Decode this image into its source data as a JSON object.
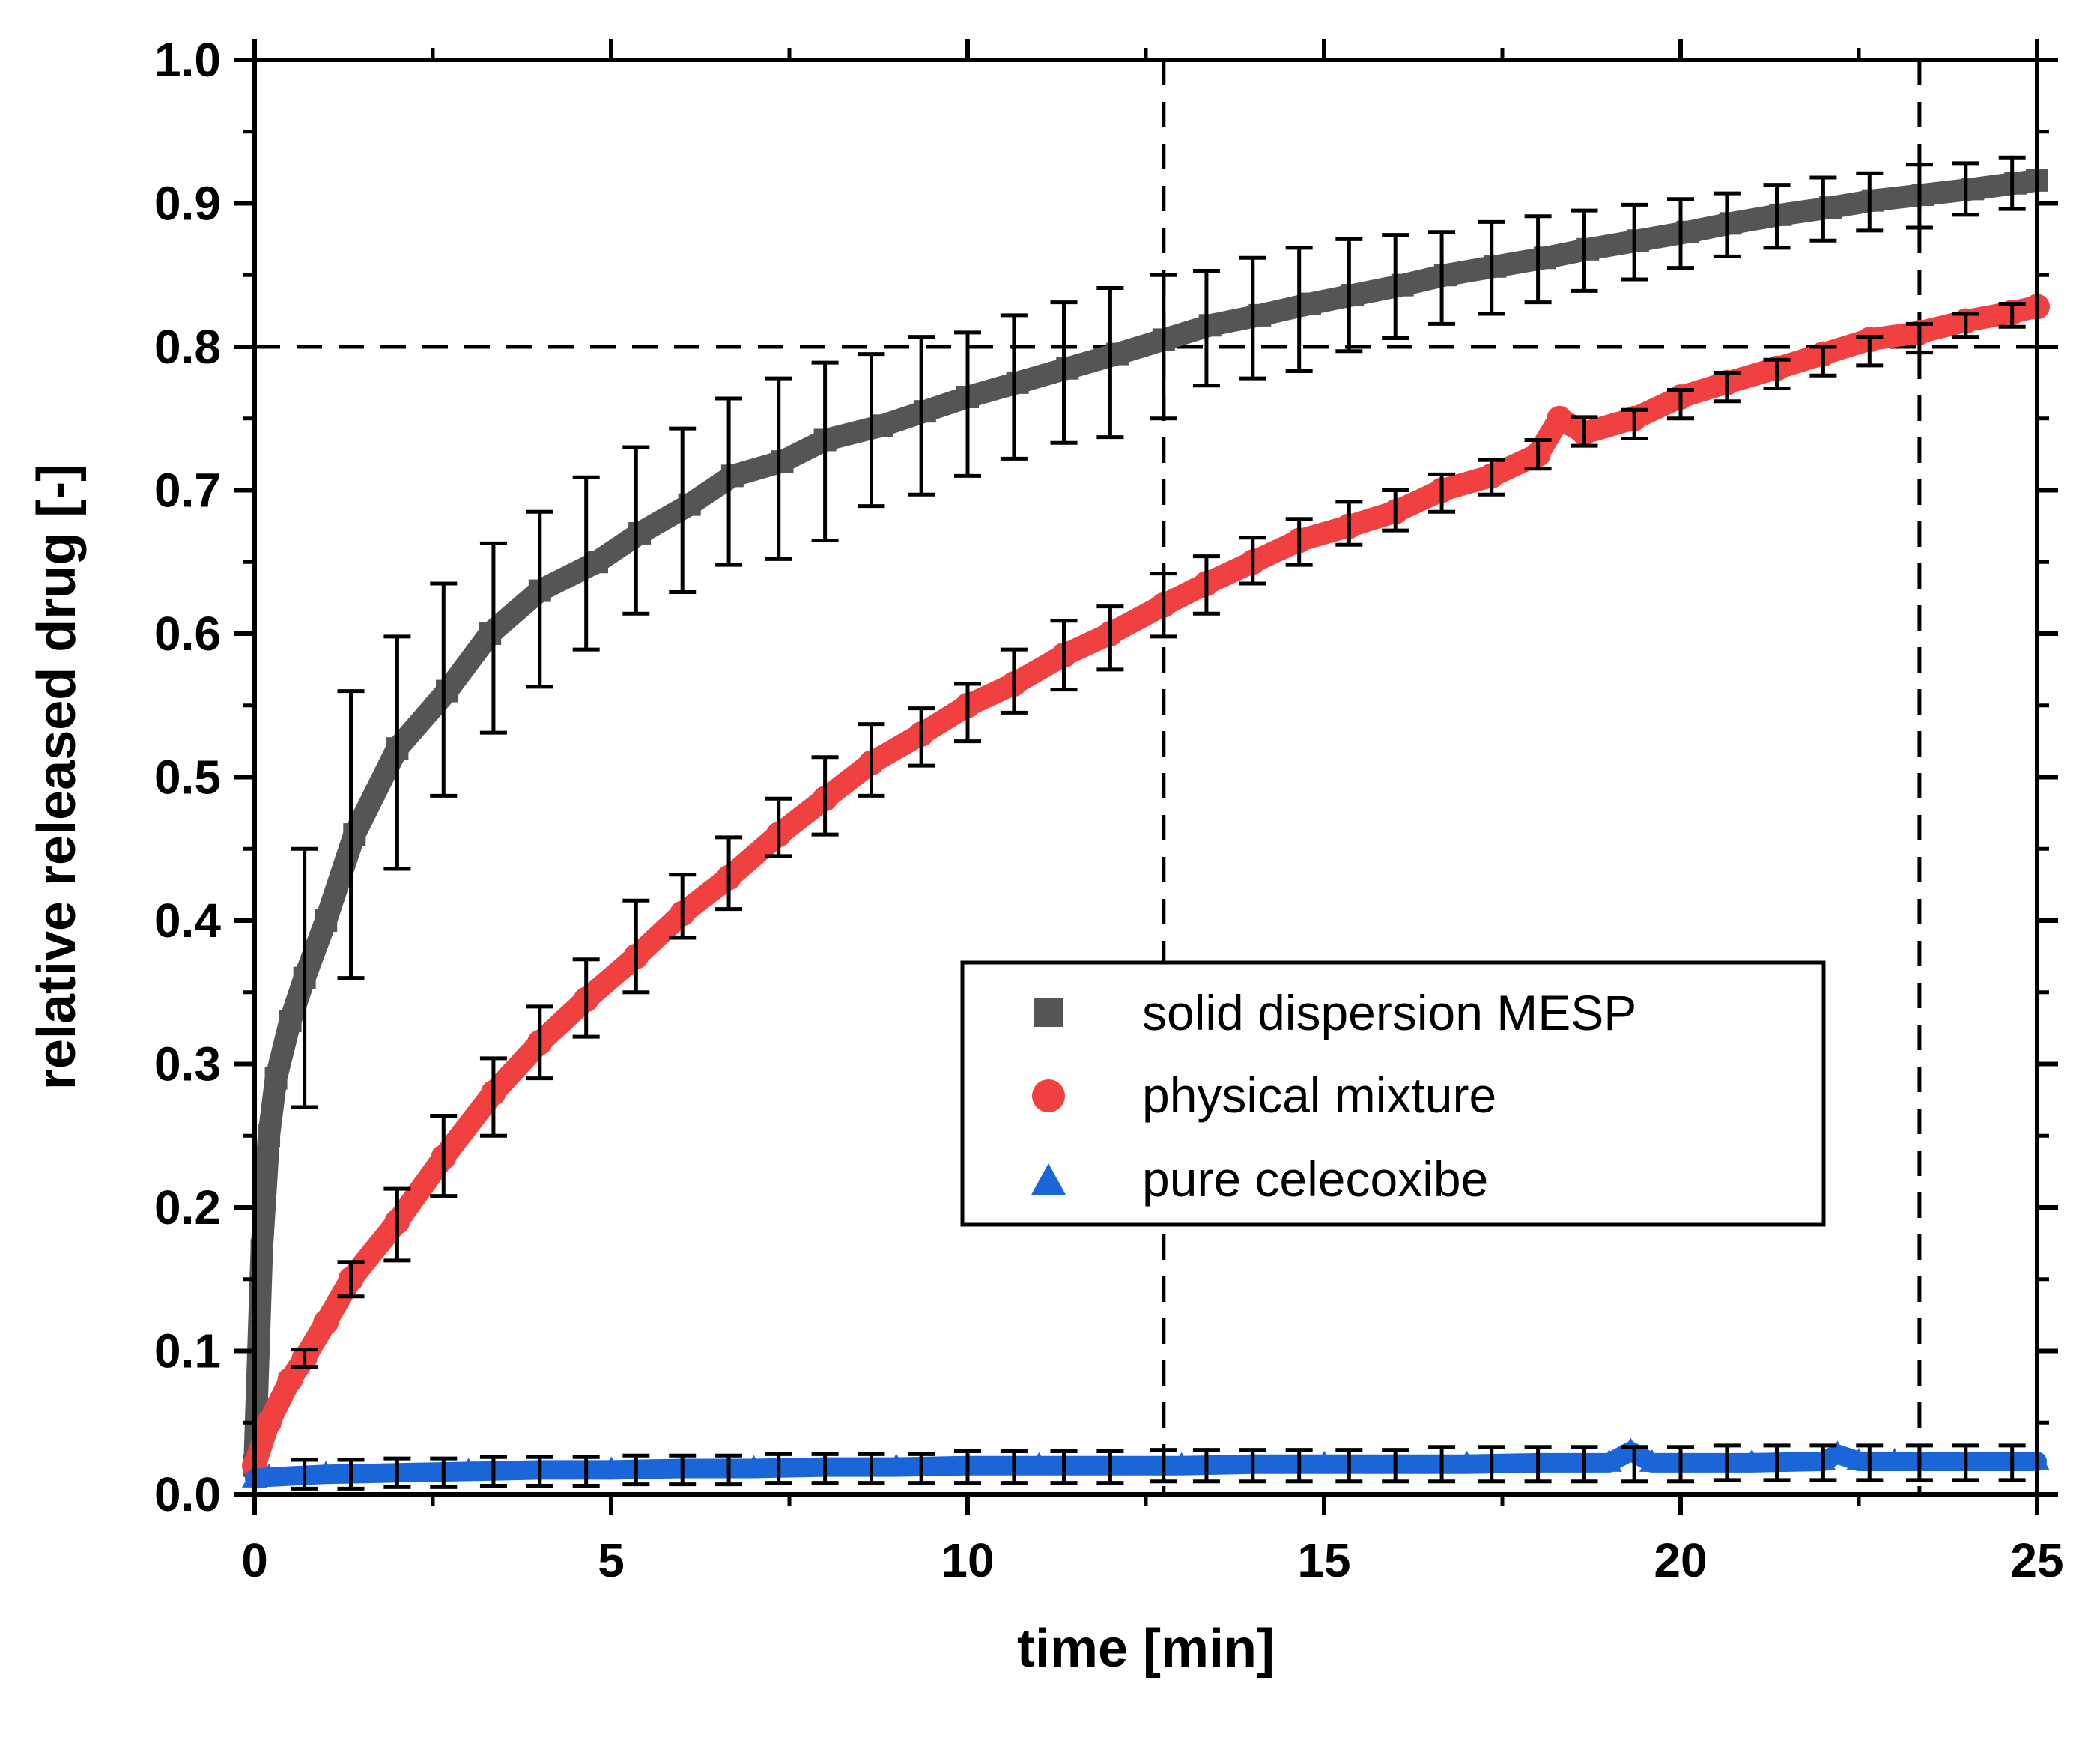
{
  "chart_data": {
    "type": "line",
    "title": "",
    "xlabel": "time [min]",
    "ylabel": "relative released drug [-]",
    "xlim": [
      0,
      25
    ],
    "ylim": [
      0,
      1.0
    ],
    "x_ticks": [
      "0",
      "5",
      "10",
      "15",
      "20",
      "25"
    ],
    "y_ticks": [
      "0.0",
      "0.1",
      "0.2",
      "0.3",
      "0.4",
      "0.5",
      "0.6",
      "0.7",
      "0.8",
      "0.9",
      "1.0"
    ],
    "grid": false,
    "legend_position": "center-right",
    "reference_lines": {
      "horizontal_y": 0.8,
      "vertical_x": [
        12.75,
        23.35
      ]
    },
    "series": [
      {
        "name": "solid dispersion MESP",
        "marker": "square",
        "color": "#555555",
        "x": [
          0,
          0.1,
          0.2,
          0.3,
          0.5,
          0.7,
          1.0,
          1.4,
          2.0,
          2.7,
          3.3,
          4.0,
          4.8,
          5.4,
          6.1,
          6.7,
          7.4,
          8.0,
          8.8,
          9.4,
          10.0,
          10.7,
          11.4,
          12.1,
          12.75,
          13.4,
          14.1,
          14.8,
          15.4,
          16.1,
          16.7,
          17.4,
          18.1,
          18.7,
          19.4,
          20.1,
          20.7,
          21.4,
          22.1,
          22.7,
          23.4,
          24.1,
          24.7,
          25.0
        ],
        "y": [
          0.02,
          0.17,
          0.25,
          0.29,
          0.33,
          0.36,
          0.4,
          0.46,
          0.52,
          0.56,
          0.6,
          0.63,
          0.65,
          0.67,
          0.69,
          0.71,
          0.72,
          0.735,
          0.745,
          0.755,
          0.765,
          0.775,
          0.785,
          0.795,
          0.805,
          0.815,
          0.822,
          0.83,
          0.836,
          0.843,
          0.85,
          0.856,
          0.862,
          0.868,
          0.874,
          0.88,
          0.886,
          0.892,
          0.897,
          0.902,
          0.906,
          0.91,
          0.914,
          0.916
        ],
        "error_x": [
          0.7,
          1.35,
          2.0,
          2.65,
          3.35,
          4.0,
          4.65,
          5.35,
          6.0,
          6.65,
          7.35,
          8.0,
          8.65,
          9.35,
          10.0,
          10.65,
          11.35,
          12.0,
          12.75,
          13.35,
          14.0,
          14.65,
          15.35,
          16.0,
          16.65,
          17.35,
          18.0,
          18.65,
          19.35,
          20.0,
          20.65,
          21.35,
          22.0,
          22.65,
          23.35,
          24.0,
          24.65
        ],
        "error_y": [
          0.36,
          0.46,
          0.517,
          0.561,
          0.597,
          0.624,
          0.649,
          0.672,
          0.686,
          0.706,
          0.715,
          0.727,
          0.742,
          0.752,
          0.76,
          0.772,
          0.782,
          0.789,
          0.8,
          0.813,
          0.82,
          0.826,
          0.836,
          0.842,
          0.848,
          0.855,
          0.861,
          0.867,
          0.873,
          0.879,
          0.885,
          0.891,
          0.896,
          0.901,
          0.905,
          0.91,
          0.914
        ],
        "error_err": [
          0.09,
          0.1,
          0.081,
          0.074,
          0.066,
          0.061,
          0.06,
          0.058,
          0.057,
          0.058,
          0.063,
          0.062,
          0.053,
          0.055,
          0.05,
          0.05,
          0.049,
          0.052,
          0.05,
          0.04,
          0.042,
          0.043,
          0.039,
          0.036,
          0.032,
          0.032,
          0.03,
          0.028,
          0.026,
          0.024,
          0.022,
          0.022,
          0.022,
          0.02,
          0.022,
          0.018,
          0.018
        ]
      },
      {
        "name": "physical mixture",
        "marker": "circle",
        "color": "#f04040",
        "x": [
          0,
          0.2,
          0.5,
          0.7,
          1.0,
          1.35,
          2.0,
          2.65,
          3.35,
          4.0,
          4.65,
          5.35,
          6.0,
          6.65,
          7.35,
          8.0,
          8.65,
          9.35,
          10.0,
          10.65,
          11.35,
          12.0,
          12.75,
          13.35,
          14.0,
          14.65,
          15.35,
          16.0,
          16.65,
          17.35,
          18.0,
          18.3,
          18.65,
          19.35,
          20.0,
          20.65,
          21.35,
          22.0,
          22.65,
          23.35,
          24.0,
          24.65,
          25.0
        ],
        "y": [
          0.02,
          0.05,
          0.08,
          0.095,
          0.12,
          0.15,
          0.19,
          0.235,
          0.28,
          0.315,
          0.345,
          0.375,
          0.405,
          0.43,
          0.46,
          0.485,
          0.51,
          0.53,
          0.55,
          0.565,
          0.585,
          0.6,
          0.62,
          0.635,
          0.65,
          0.665,
          0.675,
          0.685,
          0.7,
          0.71,
          0.725,
          0.75,
          0.74,
          0.75,
          0.765,
          0.775,
          0.785,
          0.795,
          0.805,
          0.81,
          0.818,
          0.824,
          0.828
        ],
        "error_x": [
          0.7,
          1.35,
          2.0,
          2.65,
          3.35,
          4.0,
          4.65,
          5.35,
          6.0,
          6.65,
          7.35,
          8.0,
          8.65,
          9.35,
          10.0,
          10.65,
          11.35,
          12.0,
          12.75,
          13.35,
          14.0,
          14.65,
          15.35,
          16.0,
          16.65,
          17.35,
          18.0,
          18.65,
          19.35,
          20.0,
          20.65,
          21.35,
          22.0,
          22.65,
          23.35,
          24.0,
          24.65
        ],
        "error_y": [
          0.095,
          0.15,
          0.188,
          0.236,
          0.277,
          0.315,
          0.346,
          0.382,
          0.41,
          0.433,
          0.465,
          0.487,
          0.512,
          0.528,
          0.545,
          0.567,
          0.585,
          0.597,
          0.62,
          0.634,
          0.651,
          0.664,
          0.677,
          0.686,
          0.698,
          0.709,
          0.725,
          0.741,
          0.746,
          0.76,
          0.772,
          0.781,
          0.79,
          0.797,
          0.806,
          0.815,
          0.822
        ],
        "error_err": [
          0.006,
          0.012,
          0.025,
          0.028,
          0.027,
          0.025,
          0.027,
          0.032,
          0.022,
          0.025,
          0.02,
          0.027,
          0.025,
          0.02,
          0.02,
          0.022,
          0.024,
          0.022,
          0.022,
          0.02,
          0.016,
          0.016,
          0.015,
          0.014,
          0.013,
          0.012,
          0.01,
          0.01,
          0.01,
          0.01,
          0.01,
          0.01,
          0.01,
          0.01,
          0.01,
          0.008,
          0.008
        ]
      },
      {
        "name": "pure celecoxibe",
        "marker": "triangle",
        "color": "#1a66d9",
        "x": [
          0,
          0.2,
          1.0,
          2.0,
          3.0,
          4.0,
          5.0,
          6.0,
          7.0,
          8.0,
          9.0,
          10.0,
          11.0,
          12.0,
          13.0,
          14.0,
          15.0,
          16.0,
          17.0,
          18.0,
          19.0,
          19.3,
          19.6,
          20.0,
          21.0,
          22.0,
          22.2,
          22.5,
          23.0,
          24.0,
          25.0
        ],
        "y": [
          0.011,
          0.012,
          0.014,
          0.015,
          0.016,
          0.017,
          0.017,
          0.018,
          0.018,
          0.019,
          0.019,
          0.02,
          0.02,
          0.02,
          0.02,
          0.021,
          0.021,
          0.021,
          0.021,
          0.022,
          0.022,
          0.03,
          0.022,
          0.022,
          0.022,
          0.023,
          0.028,
          0.023,
          0.023,
          0.023,
          0.023
        ],
        "error_x": [
          0.7,
          1.35,
          2.0,
          2.65,
          3.35,
          4.0,
          4.65,
          5.35,
          6.0,
          6.65,
          7.35,
          8.0,
          8.65,
          9.35,
          10.0,
          10.65,
          11.35,
          12.0,
          12.75,
          13.35,
          14.0,
          14.65,
          15.35,
          16.0,
          16.65,
          17.35,
          18.0,
          18.65,
          19.35,
          20.0,
          20.65,
          21.35,
          22.0,
          22.65,
          23.35,
          24.0,
          24.65
        ],
        "error_y": [
          0.014,
          0.014,
          0.015,
          0.015,
          0.016,
          0.016,
          0.016,
          0.017,
          0.017,
          0.017,
          0.018,
          0.018,
          0.018,
          0.018,
          0.019,
          0.019,
          0.019,
          0.019,
          0.02,
          0.02,
          0.02,
          0.02,
          0.02,
          0.02,
          0.021,
          0.021,
          0.021,
          0.021,
          0.021,
          0.021,
          0.022,
          0.022,
          0.022,
          0.022,
          0.022,
          0.022,
          0.022
        ],
        "error_err": [
          0.01,
          0.01,
          0.01,
          0.01,
          0.01,
          0.01,
          0.01,
          0.01,
          0.01,
          0.01,
          0.01,
          0.01,
          0.01,
          0.01,
          0.011,
          0.011,
          0.011,
          0.011,
          0.011,
          0.011,
          0.011,
          0.011,
          0.011,
          0.011,
          0.012,
          0.012,
          0.012,
          0.012,
          0.012,
          0.012,
          0.012,
          0.012,
          0.012,
          0.012,
          0.012,
          0.012,
          0.012
        ]
      }
    ]
  }
}
